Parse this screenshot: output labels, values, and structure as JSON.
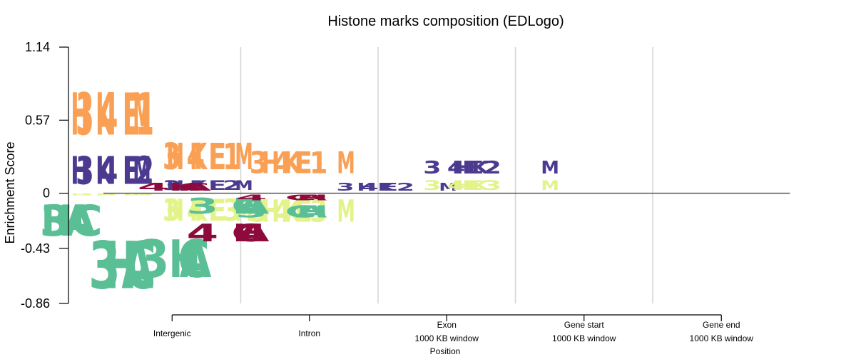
{
  "chart_data": {
    "type": "bar",
    "subtype": "sequence-logo",
    "title": "Histone marks composition (EDLogo)",
    "xlabel": "Position",
    "ylabel": "Enrichment Score",
    "ylim": [
      -0.86,
      1.14
    ],
    "yticks": [
      "1.14",
      "0.57",
      "0",
      "-0.43",
      "-0.86"
    ],
    "ytick_values": [
      1.14,
      0.57,
      0,
      -0.43,
      -0.86
    ],
    "grid": "vertical separators between positions",
    "categories": [
      [
        "Intergenic"
      ],
      [
        "Intron"
      ],
      [
        "Exon",
        "1000 KB window"
      ],
      [
        "Gene start",
        "1000 KB window"
      ],
      [
        "Gene end",
        "1000 KB window"
      ]
    ],
    "marks": [
      {
        "label": "H3K4ME1",
        "color": "#f9a055"
      },
      {
        "label": "H3K4ME2",
        "color": "#4b3a8f"
      },
      {
        "label": "H3K4ME3",
        "color": "#e3f389"
      },
      {
        "label": "H3AC",
        "color": "#5bbf96"
      },
      {
        "label": "H4AC",
        "color": "#8c0a3c"
      }
    ],
    "positions": [
      {
        "positive": [
          {
            "mark": "H3K4ME2",
            "value": 0.35
          },
          {
            "mark": "H3K4ME1",
            "value": 0.53
          }
        ],
        "negative": [
          {
            "mark": "H3K4ME3",
            "value": -0.02
          },
          {
            "mark": "H3AC",
            "value": -0.39
          }
        ]
      },
      {
        "positive": [
          {
            "mark": "H3K4ME2",
            "value": 0.12
          },
          {
            "mark": "H3K4ME1",
            "value": 0.33
          }
        ],
        "negative": [
          {
            "mark": "H3K4ME3",
            "value": -0.27
          },
          {
            "mark": "H3AC",
            "value": -0.59
          }
        ]
      },
      {
        "positive": [
          {
            "mark": "H4AC",
            "value": 0.1
          },
          {
            "mark": "H3K4ME1",
            "value": 0.27
          }
        ],
        "negative": [
          {
            "mark": "H3K4ME3",
            "value": -0.28
          },
          {
            "mark": "H3AC",
            "value": -0.47
          }
        ]
      },
      {
        "positive": [
          {
            "mark": "H3K4ME2",
            "value": 0.1
          }
        ],
        "negative": [
          {
            "mark": "H3AC",
            "value": -0.2
          },
          {
            "mark": "H4AC",
            "value": -0.22
          }
        ]
      },
      {
        "positive": [
          {
            "mark": "H3K4ME3",
            "value": 0.12
          },
          {
            "mark": "H3K4ME2",
            "value": 0.16
          }
        ],
        "negative": [
          {
            "mark": "H4AC",
            "value": -0.07
          },
          {
            "mark": "H3AC",
            "value": -0.15
          }
        ]
      }
    ]
  }
}
